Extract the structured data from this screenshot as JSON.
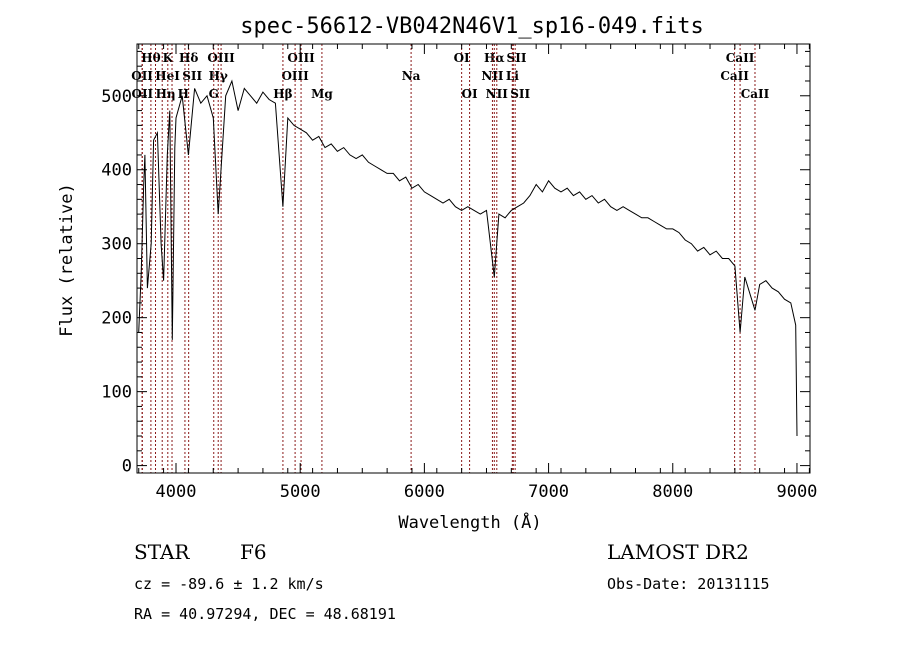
{
  "chart_data": {
    "type": "line",
    "title": "spec-56612-VB042N46V1_sp16-049.fits",
    "xlabel": "Wavelength (Å)",
    "ylabel": "Flux (relative)",
    "xlim": [
      3686,
      9105
    ],
    "ylim": [
      -10,
      570
    ],
    "xticks": [
      4000,
      5000,
      6000,
      7000,
      8000,
      9000
    ],
    "yticks": [
      0,
      100,
      200,
      300,
      400,
      500
    ],
    "grid": false,
    "series": [
      {
        "name": "spectrum",
        "x": [
          3700,
          3720,
          3740,
          3750,
          3770,
          3800,
          3820,
          3850,
          3880,
          3900,
          3930,
          3950,
          3970,
          3990,
          4000,
          4050,
          4100,
          4150,
          4200,
          4250,
          4300,
          4340,
          4400,
          4450,
          4500,
          4550,
          4600,
          4650,
          4700,
          4750,
          4800,
          4861,
          4900,
          4950,
          5000,
          5050,
          5100,
          5150,
          5200,
          5250,
          5300,
          5350,
          5400,
          5450,
          5500,
          5550,
          5600,
          5650,
          5700,
          5750,
          5800,
          5850,
          5900,
          5950,
          6000,
          6050,
          6100,
          6150,
          6200,
          6250,
          6300,
          6350,
          6400,
          6450,
          6500,
          6563,
          6600,
          6650,
          6700,
          6750,
          6800,
          6850,
          6900,
          6950,
          7000,
          7050,
          7100,
          7150,
          7200,
          7250,
          7300,
          7350,
          7400,
          7450,
          7500,
          7550,
          7600,
          7650,
          7700,
          7750,
          7800,
          7850,
          7900,
          7950,
          8000,
          8050,
          8100,
          8150,
          8200,
          8250,
          8300,
          8350,
          8400,
          8450,
          8500,
          8542,
          8580,
          8662,
          8700,
          8750,
          8800,
          8850,
          8900,
          8950,
          8990,
          9000
        ],
        "y": [
          180,
          260,
          380,
          420,
          240,
          300,
          440,
          450,
          300,
          250,
          420,
          480,
          170,
          430,
          470,
          500,
          420,
          510,
          490,
          500,
          470,
          340,
          500,
          520,
          480,
          510,
          500,
          490,
          505,
          495,
          490,
          350,
          470,
          460,
          455,
          450,
          440,
          445,
          430,
          435,
          425,
          430,
          420,
          415,
          420,
          410,
          405,
          400,
          395,
          395,
          385,
          390,
          375,
          380,
          370,
          365,
          360,
          355,
          360,
          350,
          345,
          350,
          345,
          340,
          345,
          255,
          340,
          335,
          345,
          350,
          355,
          365,
          380,
          370,
          385,
          375,
          370,
          375,
          365,
          370,
          360,
          365,
          355,
          360,
          350,
          345,
          350,
          345,
          340,
          335,
          335,
          330,
          325,
          320,
          320,
          315,
          305,
          300,
          290,
          295,
          285,
          290,
          280,
          280,
          270,
          180,
          255,
          210,
          245,
          250,
          240,
          235,
          225,
          220,
          190,
          40
        ]
      }
    ],
    "lines": [
      {
        "label": "Hθ",
        "wl": 3798,
        "row": 0
      },
      {
        "label": "K",
        "wl": 3934,
        "row": 0
      },
      {
        "label": "Hδ",
        "wl": 4102,
        "row": 0
      },
      {
        "label": "OIII",
        "wl": 4363,
        "row": 0
      },
      {
        "label": "OIII",
        "wl": 5007,
        "row": 0
      },
      {
        "label": "OI",
        "wl": 6300,
        "row": 0
      },
      {
        "label": "Hα",
        "wl": 6563,
        "row": 0
      },
      {
        "label": "SII",
        "wl": 6716,
        "row": 0
      },
      {
        "label": "CaII",
        "wl": 8542,
        "row": 0
      },
      {
        "label": "OII",
        "wl": 3727,
        "row": 1
      },
      {
        "label": "HeI",
        "wl": 3889,
        "row": 1
      },
      {
        "label": "SII",
        "wl": 4072,
        "row": 1
      },
      {
        "label": "Hγ",
        "wl": 4340,
        "row": 1
      },
      {
        "label": "OIII",
        "wl": 4959,
        "row": 1
      },
      {
        "label": "Na",
        "wl": 5893,
        "row": 1
      },
      {
        "label": "NII",
        "wl": 6548,
        "row": 1
      },
      {
        "label": "Li",
        "wl": 6708,
        "row": 1
      },
      {
        "label": "CaII",
        "wl": 8498,
        "row": 1
      },
      {
        "label": "OII",
        "wl": 3729,
        "row": 2
      },
      {
        "label": "Hη",
        "wl": 3835,
        "row": 2
      },
      {
        "label": "H",
        "wl": 3968,
        "row": 2
      },
      {
        "label": "G",
        "wl": 4304,
        "row": 2
      },
      {
        "label": "Hβ",
        "wl": 4861,
        "row": 2
      },
      {
        "label": "Mg",
        "wl": 5175,
        "row": 2
      },
      {
        "label": "OI",
        "wl": 6364,
        "row": 2
      },
      {
        "label": "NII",
        "wl": 6583,
        "row": 2
      },
      {
        "label": "SII",
        "wl": 6731,
        "row": 2
      },
      {
        "label": "CaII",
        "wl": 8662,
        "row": 2
      }
    ]
  },
  "info": {
    "class": "STAR",
    "subclass": "F6",
    "cz": "cz = -89.6 ± 1.2 km/s",
    "radec": "RA =  40.97294, DEC =  48.68191",
    "survey": "LAMOST DR2",
    "obsdate": "Obs-Date: 20131115"
  }
}
